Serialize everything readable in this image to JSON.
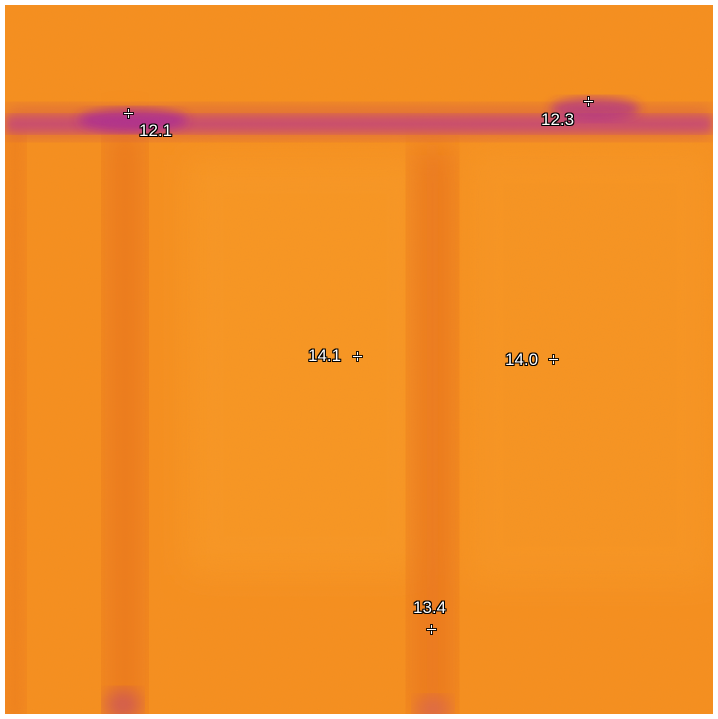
{
  "colors": {
    "thermal_base": "#f7901f",
    "thermal_warm": "#fca12c",
    "thermal_cool": "#e4661c",
    "thermal_cold": "#a8289a",
    "marker": "#ffffff"
  },
  "spots": [
    {
      "label": "12.1",
      "icon": "crosshair-icon"
    },
    {
      "label": "12.3",
      "icon": "crosshair-icon"
    },
    {
      "label": "14.1",
      "icon": "crosshair-icon"
    },
    {
      "label": "14.0",
      "icon": "crosshair-icon"
    },
    {
      "label": "13.4",
      "icon": "crosshair-icon"
    }
  ]
}
